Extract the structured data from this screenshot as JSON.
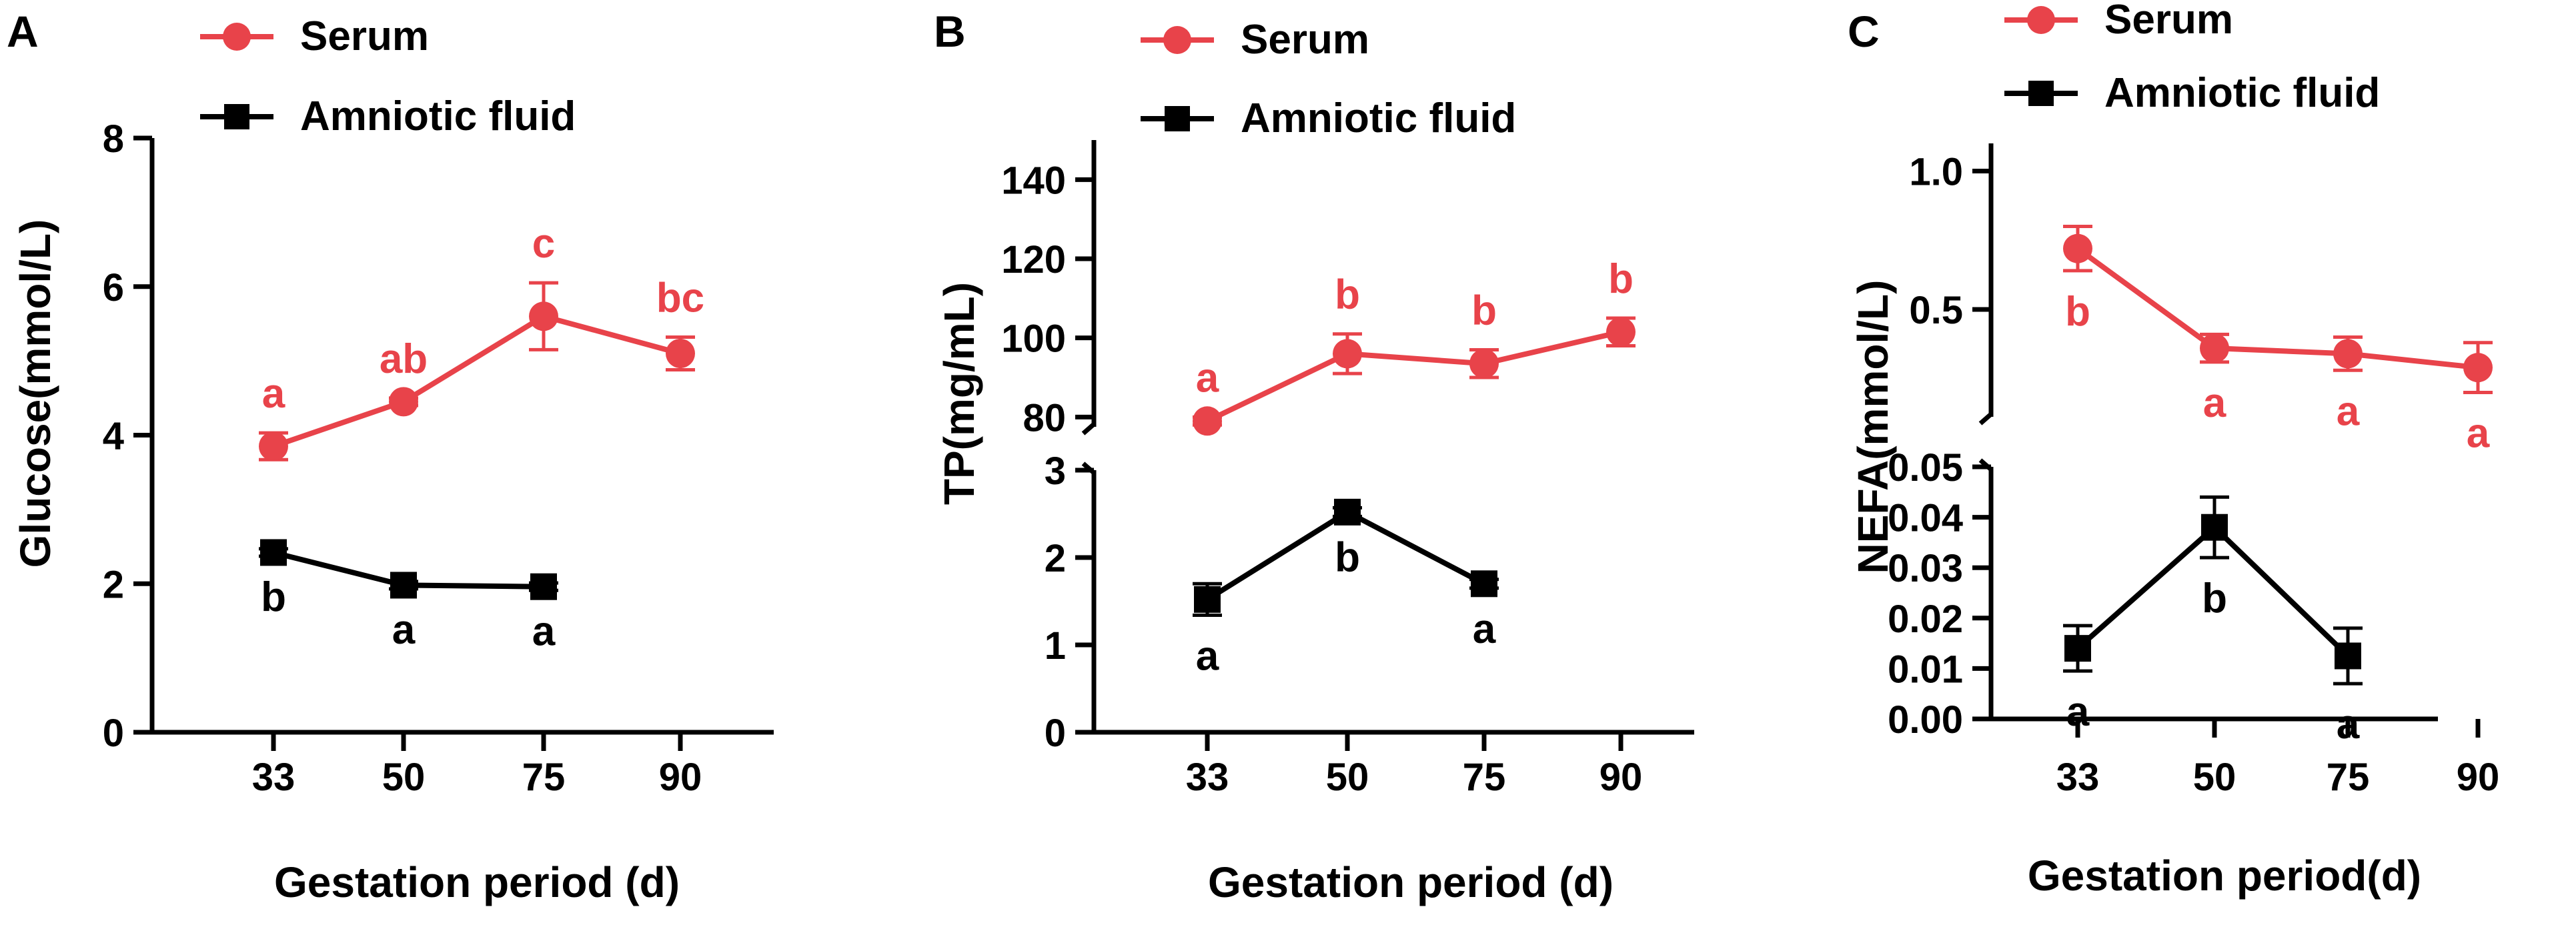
{
  "colors": {
    "serum": "#e8434a",
    "amniotic": "#000000",
    "axis": "#000000"
  },
  "legend": {
    "serum": "Serum",
    "amniotic": "Amniotic fluid"
  },
  "chart_data": [
    {
      "panel": "A",
      "type": "line",
      "xlabel": "Gestation period (d)",
      "ylabel": "Glucose(mmol/L)",
      "categories": [
        "33",
        "50",
        "75",
        "90"
      ],
      "ylim": [
        0,
        8
      ],
      "yticks": [
        "0",
        "2",
        "4",
        "6",
        "8"
      ],
      "series": [
        {
          "name": "Serum",
          "color": "#e8434a",
          "marker": "circle",
          "values": [
            3.85,
            4.45,
            5.6,
            5.1
          ],
          "errors": [
            0.18,
            0.05,
            0.45,
            0.22
          ],
          "letters": [
            "a",
            "ab",
            "c",
            "bc"
          ],
          "letter_pos": "above"
        },
        {
          "name": "Amniotic fluid",
          "color": "#000000",
          "marker": "square",
          "values": [
            2.42,
            1.98,
            1.96,
            null
          ],
          "errors": [
            0.05,
            0.05,
            0.05,
            null
          ],
          "letters": [
            "b",
            "a",
            "a",
            null
          ],
          "letter_pos": "below"
        }
      ]
    },
    {
      "panel": "B",
      "type": "line",
      "xlabel": "Gestation period (d)",
      "ylabel": "TP(mg/mL)",
      "categories": [
        "33",
        "50",
        "75",
        "90"
      ],
      "broken_axis": true,
      "upper_ylim": [
        75,
        150
      ],
      "upper_yticks": [
        "80",
        "100",
        "120",
        "140"
      ],
      "lower_ylim": [
        0,
        3
      ],
      "lower_yticks": [
        "0",
        "1",
        "2",
        "3"
      ],
      "series": [
        {
          "name": "Serum",
          "color": "#e8434a",
          "marker": "circle",
          "segment": "upper",
          "values": [
            79,
            96,
            93.5,
            101.5
          ],
          "errors": [
            1,
            5,
            3.5,
            3.5
          ],
          "letters": [
            "a",
            "b",
            "b",
            "b"
          ],
          "letter_pos": "above"
        },
        {
          "name": "Amniotic fluid",
          "color": "#000000",
          "marker": "square",
          "segment": "lower",
          "values": [
            1.52,
            2.52,
            1.7,
            null
          ],
          "errors": [
            0.18,
            0.05,
            0.05,
            null
          ],
          "letters": [
            "a",
            "b",
            "a",
            null
          ],
          "letter_pos": "below"
        }
      ]
    },
    {
      "panel": "C",
      "type": "line",
      "xlabel": "Gestation period(d)",
      "ylabel": "NEFA(mmol/L)",
      "categories": [
        "33",
        "50",
        "75",
        "90"
      ],
      "broken_axis": true,
      "upper_ylim": [
        0.1,
        1.1
      ],
      "upper_yticks": [
        "0.5",
        "1.0"
      ],
      "lower_ylim": [
        0,
        0.05
      ],
      "lower_yticks": [
        "0.00",
        "0.01",
        "0.02",
        "0.03",
        "0.04",
        "0.05"
      ],
      "series": [
        {
          "name": "Serum",
          "color": "#e8434a",
          "marker": "circle",
          "segment": "upper",
          "values": [
            0.72,
            0.36,
            0.34,
            0.29
          ],
          "errors": [
            0.08,
            0.05,
            0.06,
            0.09
          ],
          "letters": [
            "b",
            "a",
            "a",
            "a"
          ],
          "letter_pos": "below"
        },
        {
          "name": "Amniotic fluid",
          "color": "#000000",
          "marker": "square",
          "segment": "lower",
          "values": [
            0.014,
            0.038,
            0.0125,
            null
          ],
          "errors": [
            0.0045,
            0.006,
            0.0055,
            null
          ],
          "letters": [
            "a",
            "b",
            "a",
            null
          ],
          "letter_pos": "below"
        }
      ]
    }
  ]
}
